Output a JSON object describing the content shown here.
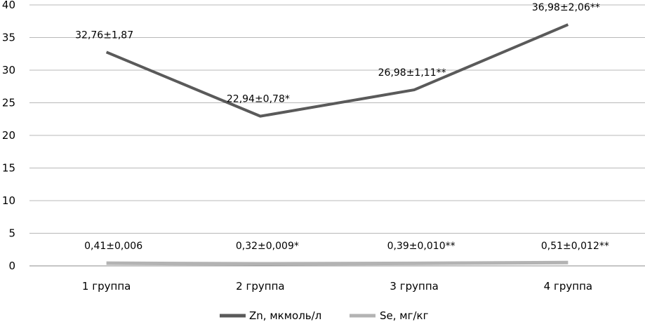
{
  "chart_data": {
    "type": "line",
    "categories": [
      "1 группа",
      "2 группа",
      "3 группа",
      "4 группа"
    ],
    "ylim": [
      0,
      40
    ],
    "yticks": [
      0,
      5,
      10,
      15,
      20,
      25,
      30,
      35,
      40
    ],
    "grid": true,
    "legend_position": "bottom",
    "series": [
      {
        "name": "Zn, мкмоль/л",
        "values": [
          32.76,
          22.94,
          26.98,
          36.98
        ],
        "labels": [
          "32,76±1,87",
          "22,94±0,78*",
          "26,98±1,11**",
          "36,98±2,06**"
        ],
        "color": "#5a5a5a"
      },
      {
        "name": "Se, мг/кг",
        "values": [
          0.41,
          0.32,
          0.39,
          0.51
        ],
        "labels": [
          "0,41±0,006",
          "0,32±0,009*",
          "0,39±0,010**",
          "0,51±0,012**"
        ],
        "color": "#b3b3b3"
      }
    ]
  }
}
